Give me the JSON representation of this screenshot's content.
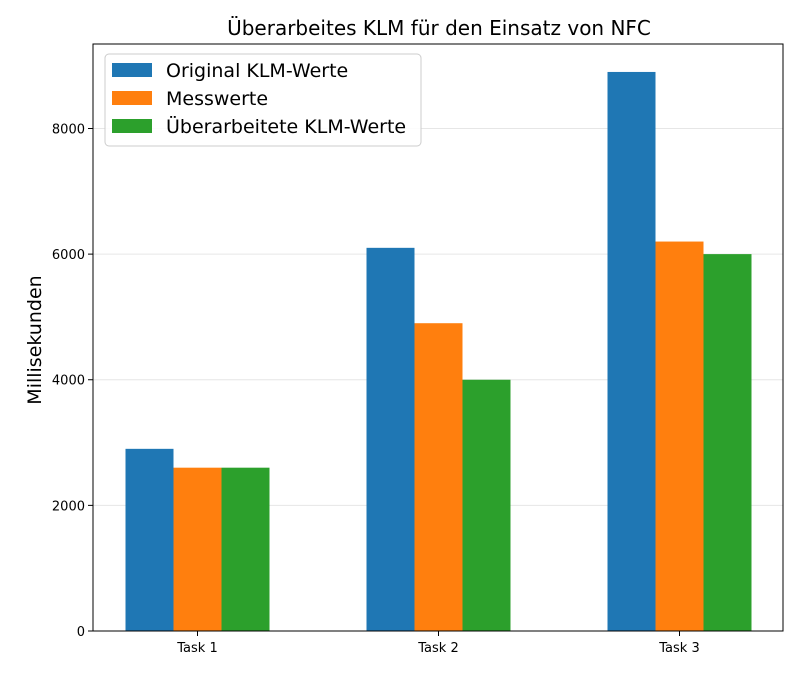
{
  "chart_data": {
    "type": "bar",
    "title": "Überarbeites KLM für den Einsatz von NFC",
    "xlabel": "",
    "ylabel": "Millisekunden",
    "categories": [
      "Task 1",
      "Task 2",
      "Task 3"
    ],
    "series": [
      {
        "name": "Original KLM-Werte",
        "values": [
          2900,
          6100,
          8900
        ],
        "color": "#1f77b4"
      },
      {
        "name": "Messwerte",
        "values": [
          2600,
          4900,
          6200
        ],
        "color": "#ff7f0e"
      },
      {
        "name": "Überarbeitete KLM-Werte",
        "values": [
          2600,
          4000,
          6000
        ],
        "color": "#2ca02c"
      }
    ],
    "ylim": [
      0,
      9345
    ],
    "yticks": [
      0,
      2000,
      4000,
      6000,
      8000
    ],
    "grid": "horizontal",
    "legend_position": "top-left"
  }
}
